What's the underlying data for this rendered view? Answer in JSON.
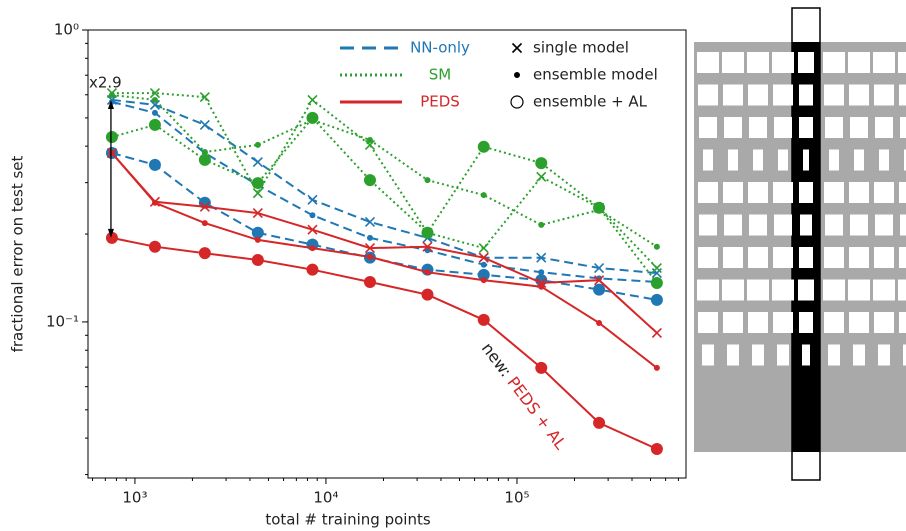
{
  "chart_data": {
    "type": "line",
    "log_x": true,
    "log_y": true,
    "x_label": "total # training points",
    "y_label": "fractional error on test set",
    "xlim": [
      568,
      767000
    ],
    "ylim": [
      0.0292,
      1
    ],
    "xticks": [
      {
        "value": 1000,
        "label": "10³"
      },
      {
        "value": 10000,
        "label": "10⁴"
      },
      {
        "value": 100000,
        "label": "10⁵"
      }
    ],
    "yticks": [
      {
        "value": 0.1,
        "label": "10⁻¹"
      },
      {
        "value": 1,
        "label": "10⁰"
      }
    ],
    "x": [
      758,
      1273,
      2323,
      4400,
      8500,
      17000,
      34000,
      67000,
      134000,
      269000,
      540000
    ],
    "legend_position": "upper right",
    "markers": [
      "single model",
      "ensemble model",
      "ensemble + AL"
    ],
    "series": [
      {
        "name": "NN-only",
        "color": "#1f77b4",
        "linestyle": "dashed",
        "single": [
          0.576,
          0.554,
          0.473,
          0.353,
          0.262,
          0.22,
          0.194,
          0.166,
          0.166,
          0.153,
          0.147
        ],
        "ensemble": [
          0.567,
          0.52,
          0.379,
          0.294,
          0.232,
          0.194,
          0.176,
          0.157,
          0.148,
          0.141,
          0.137
        ],
        "ensemble_al": [
          0.379,
          0.345,
          0.256,
          0.202,
          0.184,
          0.166,
          0.151,
          0.145,
          0.139,
          0.129,
          0.119
        ]
      },
      {
        "name": "SM",
        "color": "#2ca02c",
        "linestyle": "dotted",
        "single": [
          0.608,
          0.608,
          0.589,
          0.276,
          0.576,
          0.404,
          0.202,
          0.179,
          0.314,
          0.246,
          0.153
        ],
        "ensemble": [
          0.599,
          0.576,
          0.382,
          0.404,
          0.492,
          0.42,
          0.306,
          0.272,
          0.215,
          0.242,
          0.181
        ],
        "ensemble_al": [
          0.43,
          0.473,
          0.359,
          0.299,
          0.5,
          0.306,
          0.202,
          0.398,
          0.35,
          0.246,
          0.136
        ]
      },
      {
        "name": "PEDS",
        "color": "#d62728",
        "linestyle": "solid",
        "single": [
          0.379,
          0.258,
          0.248,
          0.236,
          0.207,
          0.179,
          0.181,
          0.166,
          0.136,
          0.139,
          0.0917
        ],
        "ensemble": [
          0.379,
          0.256,
          0.218,
          0.191,
          0.179,
          0.167,
          0.148,
          0.139,
          0.132,
          0.0992,
          0.0696
        ],
        "ensemble_al": [
          0.194,
          0.181,
          0.172,
          0.163,
          0.151,
          0.137,
          0.124,
          0.1016,
          0.0696,
          0.0451,
          0.0367
        ]
      }
    ],
    "ratio_annotation": "x2.9",
    "new_annotation": {
      "prefix": "new:",
      "name": "PEDS + AL"
    }
  }
}
